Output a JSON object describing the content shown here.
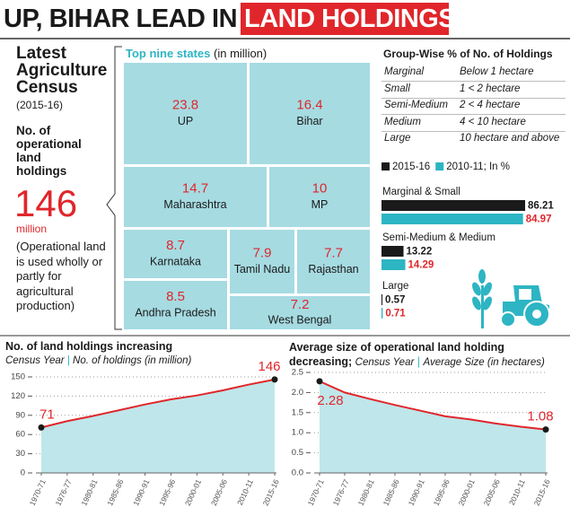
{
  "header": {
    "title": "UP, BIHAR LEAD IN",
    "highlight": "LAND HOLDINGS"
  },
  "census": {
    "title": "Latest Agriculture Census",
    "period": "(2015-16)",
    "label": "No. of operational land holdings",
    "value": 146,
    "unit": "million",
    "note": "(Operational land is used wholly or partly for agricultural production)"
  },
  "groups": {
    "title": "Group-Wise % of No. of Holdings",
    "rows": [
      [
        "Marginal",
        "Below 1 hectare"
      ],
      [
        "Small",
        "1 < 2 hectare"
      ],
      [
        "Semi-Medium",
        "2 < 4 hectare"
      ],
      [
        "Medium",
        "4 < 10 hectare"
      ],
      [
        "Large",
        "10 hectare and above"
      ]
    ]
  },
  "chart_data": [
    {
      "type": "treemap",
      "title": "Top nine states",
      "subtitle": "(in million)",
      "categories": [
        "UP",
        "Bihar",
        "Maharashtra",
        "MP",
        "Karnataka",
        "Tamil Nadu",
        "Rajasthan",
        "Andhra Pradesh",
        "West Bengal"
      ],
      "values": [
        23.8,
        16.4,
        14.7,
        10,
        8.7,
        7.9,
        7.7,
        8.5,
        7.2
      ],
      "color": "#a6dbe2",
      "value_color": "#e0262b"
    },
    {
      "type": "bar",
      "orientation": "horizontal",
      "categories": [
        "Marginal & Small",
        "Semi-Medium & Medium",
        "Large"
      ],
      "series": [
        {
          "name": "2015-16",
          "color": "#1a1a1a",
          "label_color": "#1a1a1a",
          "values": [
            86.21,
            13.22,
            0.57
          ]
        },
        {
          "name": "2010-11; In %",
          "color": "#2db5c3",
          "label_color": "#e0262b",
          "values": [
            84.97,
            14.29,
            0.71
          ]
        }
      ]
    },
    {
      "type": "line",
      "title": "No. of land holdings increasing",
      "x_label": "Census Year",
      "y_label": "No. of holdings (in million)",
      "categories": [
        "1970-71",
        "1976-77",
        "1980-81",
        "1985-86",
        "1990-91",
        "1995-96",
        "2000-01",
        "2005-06",
        "2010-11",
        "2015-16"
      ],
      "values": [
        71,
        81,
        89,
        98,
        107,
        115,
        121,
        129,
        138,
        146
      ],
      "value_labels": [
        "71",
        null,
        null,
        null,
        null,
        null,
        null,
        null,
        null,
        "146"
      ],
      "ylim": [
        0,
        150
      ],
      "yticks": [
        0,
        30,
        60,
        90,
        120,
        150
      ],
      "grid": true,
      "color": "#e0262b",
      "fill": "#bfe6ea"
    },
    {
      "type": "line",
      "title": "Average size of operational land holding decreasing;",
      "x_label": "Census Year",
      "y_label": "Average Size (in hectares)",
      "categories": [
        "1970-71",
        "1976-77",
        "1980-81",
        "1985-86",
        "1990-91",
        "1995-96",
        "2000-01",
        "2005-06",
        "2010-11",
        "2015-16"
      ],
      "values": [
        2.28,
        2.0,
        1.84,
        1.69,
        1.55,
        1.41,
        1.33,
        1.23,
        1.15,
        1.08
      ],
      "value_labels": [
        "2.28",
        null,
        null,
        null,
        null,
        null,
        null,
        null,
        null,
        "1.08"
      ],
      "ylim": [
        0,
        2.5
      ],
      "yticks": [
        {
          "value": 0,
          "label": "0.0"
        },
        0.5,
        {
          "value": 1,
          "label": "1.0"
        },
        1.5,
        {
          "value": 2,
          "label": "2.0"
        },
        2.5
      ],
      "grid": true,
      "color": "#e0262b",
      "fill": "#bfe6ea"
    }
  ]
}
